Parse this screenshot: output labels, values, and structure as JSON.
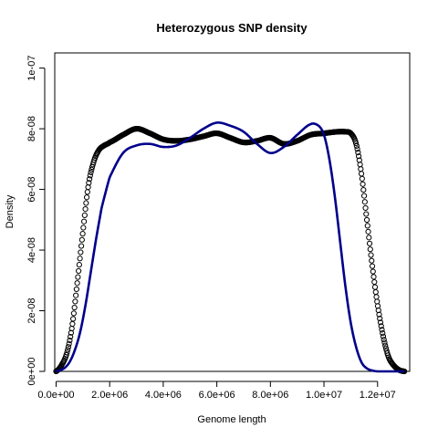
{
  "chart_data": {
    "type": "line",
    "title": "Heterozygous SNP density",
    "xlabel": "Genome length",
    "ylabel": "Density",
    "xlim": [
      -50000.0,
      13200000.0
    ],
    "ylim": [
      0,
      1.05e-07
    ],
    "x_ticks": [
      0,
      2000000,
      4000000,
      6000000,
      8000000,
      10000000,
      12000000
    ],
    "x_tick_labels": [
      "0.0e+00",
      "2.0e+06",
      "4.0e+06",
      "6.0e+06",
      "8.0e+06",
      "1.0e+07",
      "1.2e+07"
    ],
    "y_ticks": [
      0,
      2e-08,
      4e-08,
      6e-08,
      8e-08,
      1e-07
    ],
    "y_tick_labels": [
      "0e+00",
      "2e-08",
      "4e-08",
      "6e-08",
      "8e-08",
      "1e-07"
    ],
    "grid": false,
    "series": [
      {
        "style": "points",
        "marker": "open-circle",
        "color": "#000000",
        "x": [
          0,
          200000,
          400000,
          600000,
          800000,
          1000000,
          1200000,
          1400000,
          1600000,
          1800000,
          2000000,
          2500000,
          3000000,
          3500000,
          4000000,
          4500000,
          5000000,
          5500000,
          6000000,
          6500000,
          7000000,
          7500000,
          8000000,
          8500000,
          9000000,
          9500000,
          10000000,
          10500000,
          10800000,
          11000000,
          11200000,
          11400000,
          11600000,
          11800000,
          12000000,
          12200000,
          12400000,
          12600000,
          12800000,
          13000000
        ],
        "y": [
          0,
          2e-09,
          6e-09,
          1.5e-08,
          3e-08,
          4.6e-08,
          6.1e-08,
          6.9e-08,
          7.3e-08,
          7.45e-08,
          7.55e-08,
          7.8e-08,
          8e-08,
          7.85e-08,
          7.65e-08,
          7.6e-08,
          7.65e-08,
          7.75e-08,
          7.85e-08,
          7.7e-08,
          7.55e-08,
          7.6e-08,
          7.7e-08,
          7.5e-08,
          7.6e-08,
          7.8e-08,
          7.85e-08,
          7.9e-08,
          7.9e-08,
          7.85e-08,
          7.5e-08,
          6.5e-08,
          5e-08,
          3.5e-08,
          2.2e-08,
          1.2e-08,
          5e-09,
          2e-09,
          5e-10,
          0
        ]
      },
      {
        "style": "line",
        "color": "#00008B",
        "x": [
          0,
          300000,
          500000,
          700000,
          900000,
          1100000,
          1300000,
          1500000,
          1700000,
          2000000,
          2500000,
          3000000,
          3500000,
          4000000,
          4500000,
          5000000,
          5500000,
          6000000,
          6500000,
          7000000,
          7500000,
          8000000,
          8500000,
          9000000,
          9500000,
          9800000,
          10000000,
          10200000,
          10400000,
          10600000,
          10800000,
          11000000,
          11200000,
          11400000,
          11600000,
          11800000,
          12000000,
          12200000,
          12500000,
          13000000
        ],
        "y": [
          0,
          1e-09,
          3e-09,
          7e-09,
          1.3e-08,
          2.2e-08,
          3.3e-08,
          4.4e-08,
          5.4e-08,
          6.4e-08,
          7.2e-08,
          7.45e-08,
          7.5e-08,
          7.4e-08,
          7.45e-08,
          7.7e-08,
          8e-08,
          8.2e-08,
          8.1e-08,
          7.9e-08,
          7.5e-08,
          7.2e-08,
          7.4e-08,
          7.8e-08,
          8.15e-08,
          8.1e-08,
          7.8e-08,
          7e-08,
          5.8e-08,
          4.3e-08,
          2.8e-08,
          1.6e-08,
          8e-09,
          3e-09,
          1e-09,
          3e-10,
          0,
          0,
          0,
          0
        ]
      }
    ]
  }
}
